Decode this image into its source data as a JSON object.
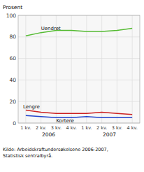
{
  "chart_data": {
    "type": "line",
    "ylabel": "Prosent",
    "categories": [
      "1 kv.",
      "2 kv.",
      "3 kv.",
      "4 kv.",
      "1 kv.",
      "2 kv.",
      "3 kv.",
      "4 kv."
    ],
    "x_groups": [
      "2006",
      "2007"
    ],
    "series": [
      {
        "name": "Uendret",
        "color": "#55bb33",
        "values": [
          81,
          84,
          86,
          86,
          85,
          85,
          86,
          88
        ]
      },
      {
        "name": "Lengre",
        "color": "#cc2222",
        "values": [
          12,
          10,
          9,
          9,
          9,
          10,
          9,
          8
        ]
      },
      {
        "name": "Kortere",
        "color": "#2244cc",
        "values": [
          7,
          6,
          5,
          5,
          6,
          5,
          5,
          5
        ]
      }
    ],
    "ylim": [
      0,
      100
    ],
    "yticks": [
      0,
      20,
      40,
      60,
      80,
      100
    ],
    "grid": true,
    "source": "Kilde: Arbeidskraftundersøkelsene 2006-2007,\nStatistisk sentralbyrå."
  }
}
